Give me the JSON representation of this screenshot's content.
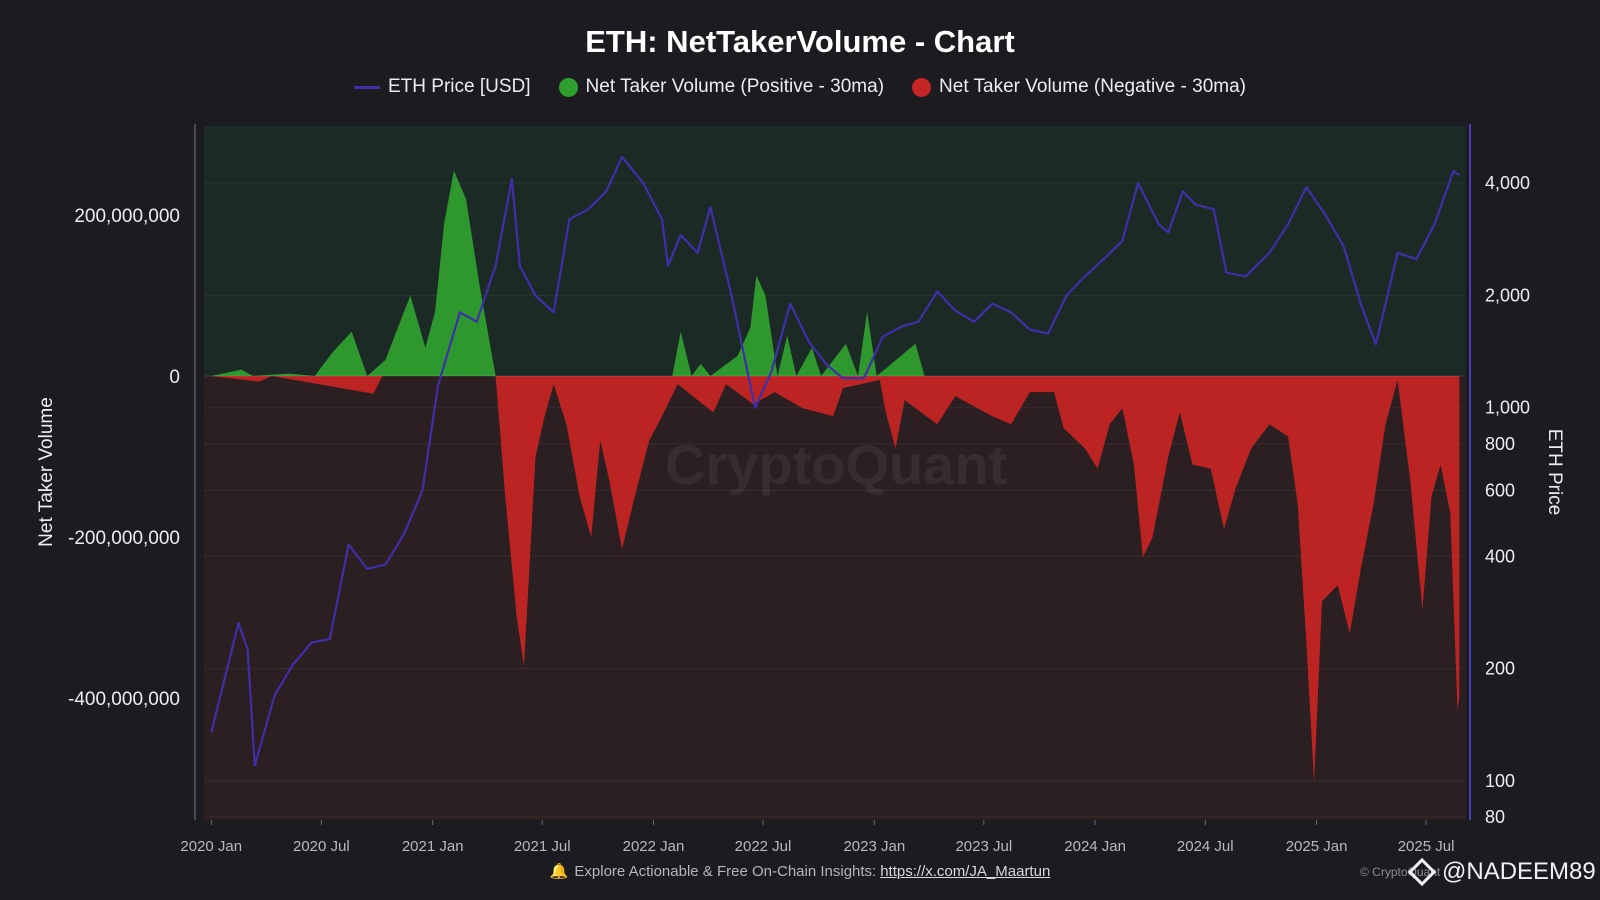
{
  "chart_data": {
    "type": "bar",
    "title": "ETH: NetTakerVolume - Chart",
    "legend": {
      "placement": "top",
      "items": [
        {
          "label": "ETH Price [USD]",
          "color": "#3f2fa8",
          "kind": "line"
        },
        {
          "label": "Net Taker Volume (Positive - 30ma)",
          "color": "#2f9e2f",
          "kind": "dot"
        },
        {
          "label": "Net Taker Volume (Negative - 30ma)",
          "color": "#c42525",
          "kind": "dot"
        }
      ]
    },
    "ylabel": "Net Taker Volume",
    "y2label": "ETH Price",
    "ylim": [
      -560000000,
      300000000
    ],
    "y2lim": [
      80,
      5000
    ],
    "y2scale": "log",
    "yticks": [
      {
        "value": 200000000,
        "label": "200,000,000"
      },
      {
        "value": 0,
        "label": "0"
      },
      {
        "value": -200000000,
        "label": "-200,000,000"
      },
      {
        "value": -400000000,
        "label": "-400,000,000"
      }
    ],
    "y2ticks": [
      {
        "value": 4000,
        "label": "4,000"
      },
      {
        "value": 2000,
        "label": "2,000"
      },
      {
        "value": 1000,
        "label": "1,000"
      },
      {
        "value": 800,
        "label": "800"
      },
      {
        "value": 600,
        "label": "600"
      },
      {
        "value": 400,
        "label": "400"
      },
      {
        "value": 200,
        "label": "200"
      },
      {
        "value": 100,
        "label": "100"
      },
      {
        "value": 80,
        "label": "80"
      }
    ],
    "xlim": [
      "2019-12-20",
      "2025-09-05"
    ],
    "xticks": [
      {
        "date": "2020-01-01",
        "label": "2020 Jan"
      },
      {
        "date": "2020-07-01",
        "label": "2020 Jul"
      },
      {
        "date": "2021-01-01",
        "label": "2021 Jan"
      },
      {
        "date": "2021-07-01",
        "label": "2021 Jul"
      },
      {
        "date": "2022-01-01",
        "label": "2022 Jan"
      },
      {
        "date": "2022-07-01",
        "label": "2022 Jul"
      },
      {
        "date": "2023-01-01",
        "label": "2023 Jan"
      },
      {
        "date": "2023-07-01",
        "label": "2023 Jul"
      },
      {
        "date": "2024-01-01",
        "label": "2024 Jan"
      },
      {
        "date": "2024-07-01",
        "label": "2024 Jul"
      },
      {
        "date": "2025-01-01",
        "label": "2025 Jan"
      },
      {
        "date": "2025-07-01",
        "label": "2025 Jul"
      }
    ],
    "grid": true,
    "series": [
      {
        "name": "ETH Price [USD]",
        "type": "line",
        "axis": "right",
        "color": "#3f2fa8",
        "points": [
          [
            "2020-01-01",
            135
          ],
          [
            "2020-02-15",
            265
          ],
          [
            "2020-03-01",
            225
          ],
          [
            "2020-03-13",
            110
          ],
          [
            "2020-04-15",
            170
          ],
          [
            "2020-05-15",
            205
          ],
          [
            "2020-06-15",
            235
          ],
          [
            "2020-07-15",
            240
          ],
          [
            "2020-08-15",
            430
          ],
          [
            "2020-09-15",
            370
          ],
          [
            "2020-10-15",
            380
          ],
          [
            "2020-11-15",
            460
          ],
          [
            "2020-12-15",
            600
          ],
          [
            "2021-01-10",
            1150
          ],
          [
            "2021-02-15",
            1800
          ],
          [
            "2021-03-15",
            1700
          ],
          [
            "2021-04-15",
            2400
          ],
          [
            "2021-05-12",
            4100
          ],
          [
            "2021-05-25",
            2400
          ],
          [
            "2021-06-20",
            2000
          ],
          [
            "2021-07-20",
            1800
          ],
          [
            "2021-08-15",
            3200
          ],
          [
            "2021-09-15",
            3400
          ],
          [
            "2021-10-15",
            3800
          ],
          [
            "2021-11-10",
            4700
          ],
          [
            "2021-12-15",
            4000
          ],
          [
            "2022-01-15",
            3200
          ],
          [
            "2022-01-25",
            2400
          ],
          [
            "2022-02-15",
            2900
          ],
          [
            "2022-03-15",
            2600
          ],
          [
            "2022-04-05",
            3450
          ],
          [
            "2022-05-10",
            2000
          ],
          [
            "2022-06-18",
            1000
          ],
          [
            "2022-07-15",
            1250
          ],
          [
            "2022-08-15",
            1900
          ],
          [
            "2022-09-15",
            1500
          ],
          [
            "2022-10-15",
            1300
          ],
          [
            "2022-11-10",
            1200
          ],
          [
            "2022-12-15",
            1200
          ],
          [
            "2023-01-15",
            1550
          ],
          [
            "2023-02-15",
            1650
          ],
          [
            "2023-03-15",
            1700
          ],
          [
            "2023-04-15",
            2050
          ],
          [
            "2023-05-15",
            1820
          ],
          [
            "2023-06-15",
            1700
          ],
          [
            "2023-07-15",
            1900
          ],
          [
            "2023-08-15",
            1800
          ],
          [
            "2023-09-15",
            1620
          ],
          [
            "2023-10-15",
            1580
          ],
          [
            "2023-11-15",
            2000
          ],
          [
            "2023-12-15",
            2250
          ],
          [
            "2024-01-15",
            2500
          ],
          [
            "2024-02-15",
            2800
          ],
          [
            "2024-03-12",
            4000
          ],
          [
            "2024-04-15",
            3100
          ],
          [
            "2024-05-01",
            2950
          ],
          [
            "2024-05-25",
            3800
          ],
          [
            "2024-06-15",
            3500
          ],
          [
            "2024-07-15",
            3400
          ],
          [
            "2024-08-05",
            2300
          ],
          [
            "2024-09-06",
            2250
          ],
          [
            "2024-10-15",
            2600
          ],
          [
            "2024-11-15",
            3100
          ],
          [
            "2024-12-15",
            3900
          ],
          [
            "2025-01-15",
            3300
          ],
          [
            "2025-02-15",
            2700
          ],
          [
            "2025-03-15",
            1900
          ],
          [
            "2025-04-09",
            1480
          ],
          [
            "2025-05-15",
            2600
          ],
          [
            "2025-06-15",
            2500
          ],
          [
            "2025-07-15",
            3100
          ],
          [
            "2025-08-15",
            4300
          ],
          [
            "2025-08-25",
            4200
          ]
        ]
      },
      {
        "name": "Net Taker Volume (Positive - 30ma)",
        "type": "area",
        "axis": "left",
        "color": "#2f9e2f",
        "points": [
          [
            "2020-01-01",
            0
          ],
          [
            "2020-02-20",
            8000000
          ],
          [
            "2020-03-10",
            0
          ],
          [
            "2020-05-10",
            3000000
          ],
          [
            "2020-06-20",
            0
          ],
          [
            "2020-07-20",
            30000000
          ],
          [
            "2020-08-20",
            55000000
          ],
          [
            "2020-09-15",
            0
          ],
          [
            "2020-10-15",
            20000000
          ],
          [
            "2020-11-25",
            100000000
          ],
          [
            "2020-12-20",
            35000000
          ],
          [
            "2021-01-05",
            80000000
          ],
          [
            "2021-01-20",
            190000000
          ],
          [
            "2021-02-05",
            255000000
          ],
          [
            "2021-02-25",
            220000000
          ],
          [
            "2021-03-20",
            110000000
          ],
          [
            "2021-04-15",
            0
          ],
          [
            "2022-02-01",
            0
          ],
          [
            "2022-02-15",
            55000000
          ],
          [
            "2022-03-05",
            0
          ],
          [
            "2022-03-20",
            15000000
          ],
          [
            "2022-04-05",
            0
          ],
          [
            "2022-05-20",
            25000000
          ],
          [
            "2022-06-10",
            60000000
          ],
          [
            "2022-06-20",
            125000000
          ],
          [
            "2022-07-05",
            100000000
          ],
          [
            "2022-07-25",
            0
          ],
          [
            "2022-08-10",
            50000000
          ],
          [
            "2022-08-25",
            0
          ],
          [
            "2022-09-20",
            35000000
          ],
          [
            "2022-10-05",
            0
          ],
          [
            "2022-11-15",
            40000000
          ],
          [
            "2022-12-05",
            0
          ],
          [
            "2022-12-20",
            80000000
          ],
          [
            "2023-01-05",
            0
          ],
          [
            "2023-03-10",
            40000000
          ],
          [
            "2023-03-25",
            0
          ],
          [
            "2025-08-20",
            0
          ]
        ]
      },
      {
        "name": "Net Taker Volume (Negative - 30ma)",
        "type": "area",
        "axis": "left",
        "color": "#c42525",
        "points": [
          [
            "2020-01-01",
            0
          ],
          [
            "2020-03-20",
            -7000000
          ],
          [
            "2020-04-10",
            0
          ],
          [
            "2020-09-25",
            -22000000
          ],
          [
            "2020-10-10",
            0
          ],
          [
            "2021-04-15",
            0
          ],
          [
            "2021-05-01",
            -150000000
          ],
          [
            "2021-05-20",
            -300000000
          ],
          [
            "2021-06-01",
            -360000000
          ],
          [
            "2021-06-20",
            -100000000
          ],
          [
            "2021-07-05",
            -50000000
          ],
          [
            "2021-07-20",
            -10000000
          ],
          [
            "2021-08-10",
            -60000000
          ],
          [
            "2021-09-01",
            -150000000
          ],
          [
            "2021-09-20",
            -200000000
          ],
          [
            "2021-10-05",
            -80000000
          ],
          [
            "2021-10-20",
            -130000000
          ],
          [
            "2021-11-10",
            -215000000
          ],
          [
            "2021-12-01",
            -150000000
          ],
          [
            "2021-12-25",
            -80000000
          ],
          [
            "2022-01-15",
            -50000000
          ],
          [
            "2022-02-10",
            -10000000
          ],
          [
            "2022-03-15",
            -30000000
          ],
          [
            "2022-04-10",
            -45000000
          ],
          [
            "2022-05-01",
            -10000000
          ],
          [
            "2022-06-15",
            -35000000
          ],
          [
            "2022-07-20",
            -20000000
          ],
          [
            "2022-09-05",
            -40000000
          ],
          [
            "2022-10-25",
            -50000000
          ],
          [
            "2022-11-10",
            -15000000
          ],
          [
            "2023-01-10",
            -5000000
          ],
          [
            "2023-01-20",
            -45000000
          ],
          [
            "2023-02-05",
            -90000000
          ],
          [
            "2023-02-20",
            -30000000
          ],
          [
            "2023-04-15",
            -60000000
          ],
          [
            "2023-05-15",
            -25000000
          ],
          [
            "2023-07-15",
            -50000000
          ],
          [
            "2023-08-15",
            -60000000
          ],
          [
            "2023-09-15",
            -20000000
          ],
          [
            "2023-10-25",
            -20000000
          ],
          [
            "2023-11-10",
            -65000000
          ],
          [
            "2023-12-15",
            -90000000
          ],
          [
            "2024-01-05",
            -115000000
          ],
          [
            "2024-01-25",
            -60000000
          ],
          [
            "2024-02-15",
            -40000000
          ],
          [
            "2024-03-05",
            -110000000
          ],
          [
            "2024-03-20",
            -225000000
          ],
          [
            "2024-04-05",
            -200000000
          ],
          [
            "2024-05-01",
            -100000000
          ],
          [
            "2024-05-20",
            -45000000
          ],
          [
            "2024-06-10",
            -110000000
          ],
          [
            "2024-07-10",
            -115000000
          ],
          [
            "2024-08-01",
            -190000000
          ],
          [
            "2024-08-20",
            -140000000
          ],
          [
            "2024-09-15",
            -90000000
          ],
          [
            "2024-10-15",
            -60000000
          ],
          [
            "2024-11-15",
            -75000000
          ],
          [
            "2024-12-01",
            -160000000
          ],
          [
            "2024-12-15",
            -330000000
          ],
          [
            "2024-12-28",
            -505000000
          ],
          [
            "2025-01-10",
            -280000000
          ],
          [
            "2025-02-05",
            -260000000
          ],
          [
            "2025-02-25",
            -320000000
          ],
          [
            "2025-03-15",
            -240000000
          ],
          [
            "2025-04-05",
            -160000000
          ],
          [
            "2025-04-25",
            -60000000
          ],
          [
            "2025-05-15",
            -5000000
          ],
          [
            "2025-06-05",
            -130000000
          ],
          [
            "2025-06-25",
            -290000000
          ],
          [
            "2025-07-10",
            -150000000
          ],
          [
            "2025-07-25",
            -110000000
          ],
          [
            "2025-08-10",
            -170000000
          ],
          [
            "2025-08-22",
            -415000000
          ],
          [
            "2025-08-25",
            -400000000
          ]
        ]
      }
    ]
  },
  "watermark": "CryptoQuant",
  "footer": {
    "text": "Explore Actionable & Free On-Chain Insights:",
    "link": "https://x.com/JA_Maartun"
  },
  "copyright": "© CryptoQuant",
  "handle": "@NADEEM89"
}
